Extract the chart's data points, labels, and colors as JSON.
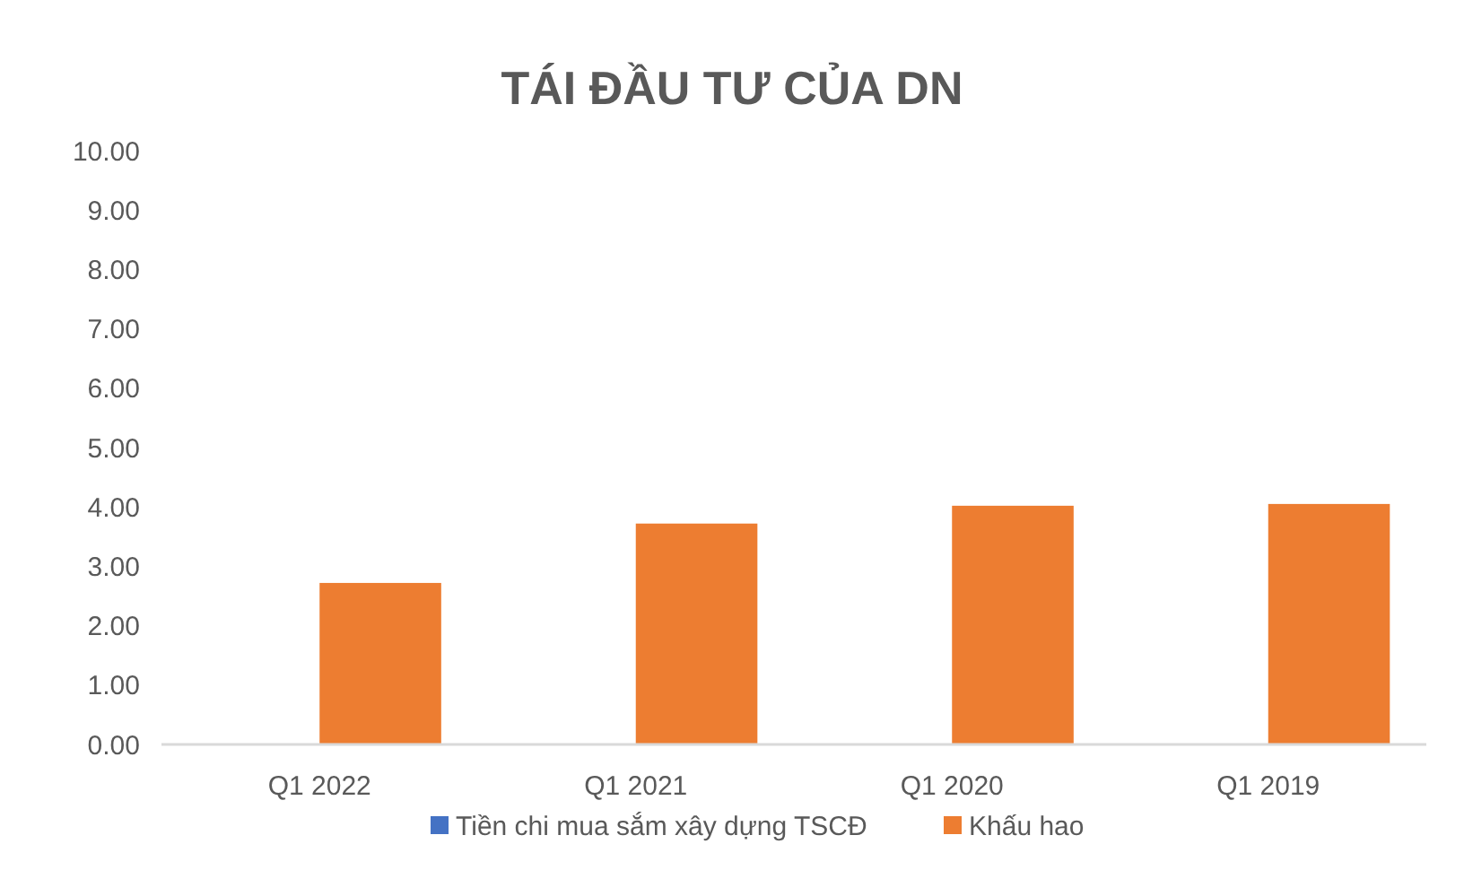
{
  "chart_data": {
    "type": "bar",
    "title": "TÁI ĐẦU TƯ CỦA DN",
    "categories": [
      "Q1 2022",
      "Q1 2021",
      "Q1 2020",
      "Q1 2019"
    ],
    "series": [
      {
        "name": "Tiền chi mua sắm xây dựng TSCĐ",
        "color": "#4472c4",
        "values": [
          0,
          0,
          0,
          0
        ]
      },
      {
        "name": "Khấu hao",
        "color": "#ed7d31",
        "values": [
          2.72,
          3.72,
          4.02,
          4.05
        ]
      }
    ],
    "ylim": [
      0,
      10
    ],
    "yticks": [
      {
        "value": 0,
        "label": "0.00"
      },
      {
        "value": 1,
        "label": "1.00"
      },
      {
        "value": 2,
        "label": "2.00"
      },
      {
        "value": 3,
        "label": "3.00"
      },
      {
        "value": 4,
        "label": "4.00"
      },
      {
        "value": 5,
        "label": "5.00"
      },
      {
        "value": 6,
        "label": "6.00"
      },
      {
        "value": 7,
        "label": "7.00"
      },
      {
        "value": 8,
        "label": "8.00"
      },
      {
        "value": 9,
        "label": "9.00"
      },
      {
        "value": 10,
        "label": "10.00"
      }
    ],
    "grid": false,
    "legend": "bottom"
  }
}
